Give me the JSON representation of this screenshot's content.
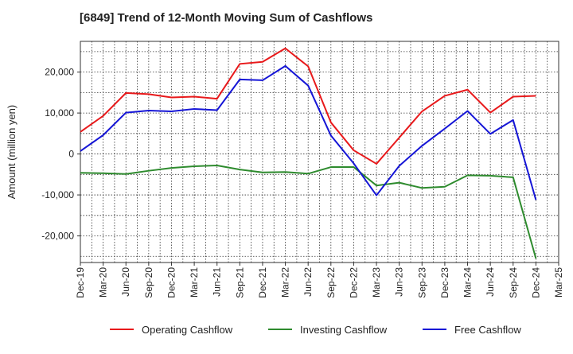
{
  "chart_data": {
    "type": "line",
    "title": "[6849]  Trend of 12-Month Moving Sum of Cashflows",
    "xlabel": "",
    "ylabel": "Amount (million yen)",
    "categories": [
      "Dec-19",
      "Mar-20",
      "Jun-20",
      "Sep-20",
      "Dec-20",
      "Mar-21",
      "Jun-21",
      "Sep-21",
      "Dec-21",
      "Mar-22",
      "Jun-22",
      "Sep-22",
      "Dec-22",
      "Mar-23",
      "Jun-23",
      "Sep-23",
      "Dec-23",
      "Mar-24",
      "Jun-24",
      "Sep-24",
      "Dec-24",
      "Mar-25"
    ],
    "ylim": [
      -26500,
      27500
    ],
    "yticks": [
      -20000,
      -10000,
      0,
      10000,
      20000
    ],
    "ytick_labels": [
      "-20,000",
      "-10,000",
      "0",
      "10,000",
      "20,000"
    ],
    "grid": true,
    "legend_position": "bottom",
    "series": [
      {
        "name": "Operating Cashflow",
        "color": "#e8191b",
        "values": [
          5400,
          9300,
          14900,
          14600,
          13800,
          14000,
          13500,
          22000,
          22500,
          25800,
          21400,
          7700,
          900,
          -2400,
          4000,
          10400,
          14200,
          15700,
          10100,
          14000,
          14200,
          null
        ]
      },
      {
        "name": "Investing Cashflow",
        "color": "#2e8b2e",
        "values": [
          -4600,
          -4700,
          -4900,
          -4100,
          -3400,
          -3000,
          -2800,
          -3800,
          -4500,
          -4400,
          -4800,
          -3200,
          -3200,
          -7700,
          -7000,
          -8300,
          -8000,
          -5200,
          -5300,
          -5700,
          -25500,
          null
        ]
      },
      {
        "name": "Free Cashflow",
        "color": "#1515d6",
        "values": [
          700,
          4600,
          10100,
          10600,
          10400,
          11000,
          10700,
          18200,
          18000,
          21500,
          16700,
          4500,
          -2300,
          -10100,
          -2900,
          2000,
          6200,
          10500,
          4900,
          8300,
          -11200,
          null
        ]
      }
    ]
  }
}
